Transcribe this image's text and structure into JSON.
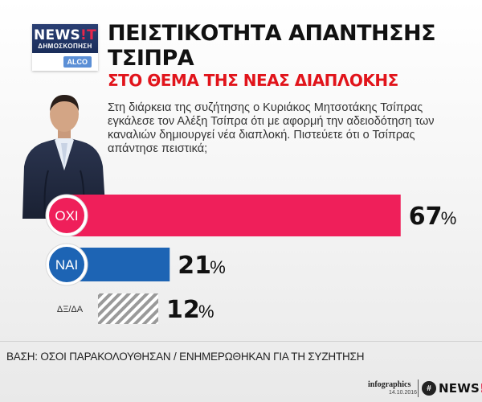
{
  "logo": {
    "brand_main": "NEWS",
    "brand_excl": "!T",
    "subtitle": "ΔΗΜΟΣΚΟΠΗΣΗ",
    "partner": "ALCO"
  },
  "title": "ΠΕΙΣΤΙΚΟΤΗΤΑ ΑΠΑΝΤΗΣΗΣ ΤΣΙΠΡΑ",
  "subtitle": "ΣΤΟ ΘΕΜΑ ΤΗΣ ΝΕΑΣ ΔΙΑΠΛΟΚΗΣ",
  "question": "Στη διάρκεια της συζήτησης ο Κυριάκος Μητσοτάκης Τσίπρας εγκάλεσε τον Αλέξη Τσίπρα ότι με αφορμή την αδειοδότηση των καναλιών δημιουργεί νέα διαπλοκή. Πιστεύετε ότι ο Τσίπρας απάντησε πειστικά;",
  "chart_data": {
    "type": "bar",
    "orientation": "horizontal",
    "categories": [
      "ΟΧΙ",
      "ΝΑΙ",
      "ΔΞ/ΔΑ"
    ],
    "values": [
      67,
      21,
      12
    ],
    "value_suffix": "%",
    "colors": [
      "#ef1f5a",
      "#1d64b4",
      "#9a9a9a"
    ],
    "xlim": [
      0,
      100
    ],
    "grid": false,
    "legend": "none"
  },
  "base_note": "ΒΑΣΗ: ΟΣΟΙ ΠΑΡΑΚΟΛΟΥΘΗΣΑΝ / ΕΝΗΜΕΡΩΘΗΚΑΝ ΓΙΑ ΤΗ ΣΥΖΗΤΗΣΗ",
  "footer": {
    "infographics_label": "infographics",
    "date": "14.10.2016",
    "badge": "#",
    "brand_main": "NEWS",
    "brand_excl": "!T"
  }
}
